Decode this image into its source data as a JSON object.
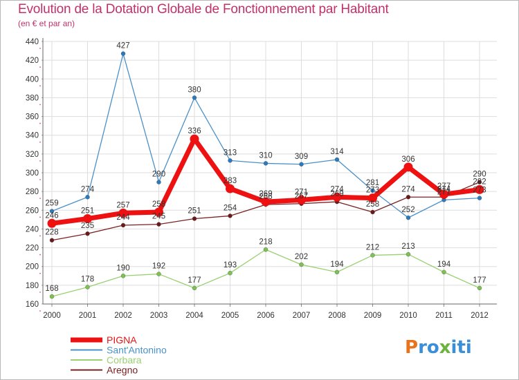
{
  "title": "Evolution de la Dotation Globale de Fonctionnement par Habitant",
  "subtitle": "(en € et par an)",
  "logo": {
    "letters": [
      "P",
      "r",
      "o",
      "x",
      "i",
      "t",
      "i"
    ],
    "colors": [
      "#e8731a",
      "#3a8fd8",
      "#3a8fd8",
      "#6db33f",
      "#3a8fd8",
      "#3a8fd8",
      "#3a8fd8"
    ]
  },
  "chart_data": {
    "type": "line",
    "x": [
      "2000",
      "2001",
      "2002",
      "2003",
      "2004",
      "2005",
      "2006",
      "2007",
      "2008",
      "2009",
      "2010",
      "2011",
      "2012"
    ],
    "ylim": [
      160,
      440
    ],
    "yticks": [
      160,
      180,
      200,
      220,
      240,
      260,
      280,
      300,
      320,
      340,
      360,
      380,
      400,
      420,
      440
    ],
    "grid": true,
    "legend_position": "bottom-left",
    "series": [
      {
        "name": "Sant'Antonino",
        "color": "#4a90c8",
        "marker_color": "#2a7ac0",
        "values": [
          259,
          274,
          427,
          290,
          380,
          313,
          310,
          309,
          314,
          281,
          252,
          271,
          273
        ]
      },
      {
        "name": "Corbara",
        "color": "#99d070",
        "marker_color": "#7cc250",
        "values": [
          168,
          178,
          190,
          192,
          177,
          193,
          218,
          202,
          194,
          212,
          213,
          194,
          177
        ]
      },
      {
        "name": "Aregno",
        "color": "#7a2020",
        "marker_color": "#6a1818",
        "values": [
          228,
          235,
          244,
          245,
          251,
          254,
          266,
          267,
          269,
          258,
          274,
          274,
          290
        ]
      },
      {
        "name": "PIGNA",
        "color": "#ee1111",
        "marker_color": "#ee1111",
        "values": [
          246,
          251,
          257,
          258,
          336,
          283,
          269,
          271,
          274,
          273,
          306,
          277,
          282
        ]
      }
    ],
    "legend_order": [
      "PIGNA",
      "Sant'Antonino",
      "Corbara",
      "Aregno"
    ]
  }
}
